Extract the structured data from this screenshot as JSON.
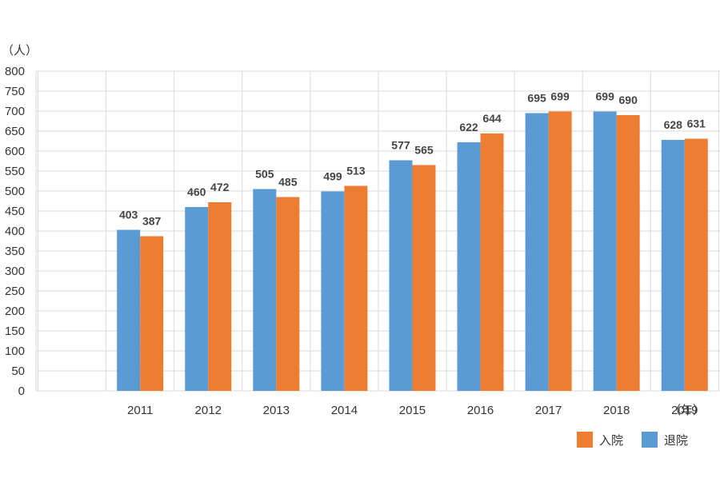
{
  "chart_data": {
    "type": "bar",
    "y_unit_label": "（人）",
    "x_unit_label": "（年）",
    "ylim": [
      0,
      800
    ],
    "y_ticks": [
      0,
      50,
      100,
      150,
      200,
      250,
      300,
      350,
      400,
      450,
      500,
      550,
      600,
      650,
      700,
      750,
      800
    ],
    "grid": true,
    "legend_placement": "bottom-right",
    "categories": [
      "2011",
      "2012",
      "2013",
      "2014",
      "2015",
      "2016",
      "2017",
      "2018",
      "2019"
    ],
    "series": [
      {
        "name": "退院",
        "color": "#5b9bd5",
        "values": [
          403,
          460,
          505,
          499,
          577,
          622,
          695,
          699,
          628
        ]
      },
      {
        "name": "入院",
        "color": "#ed7d31",
        "values": [
          387,
          472,
          485,
          513,
          565,
          644,
          699,
          690,
          631
        ]
      }
    ],
    "legend_order": [
      "入院",
      "退院"
    ]
  }
}
